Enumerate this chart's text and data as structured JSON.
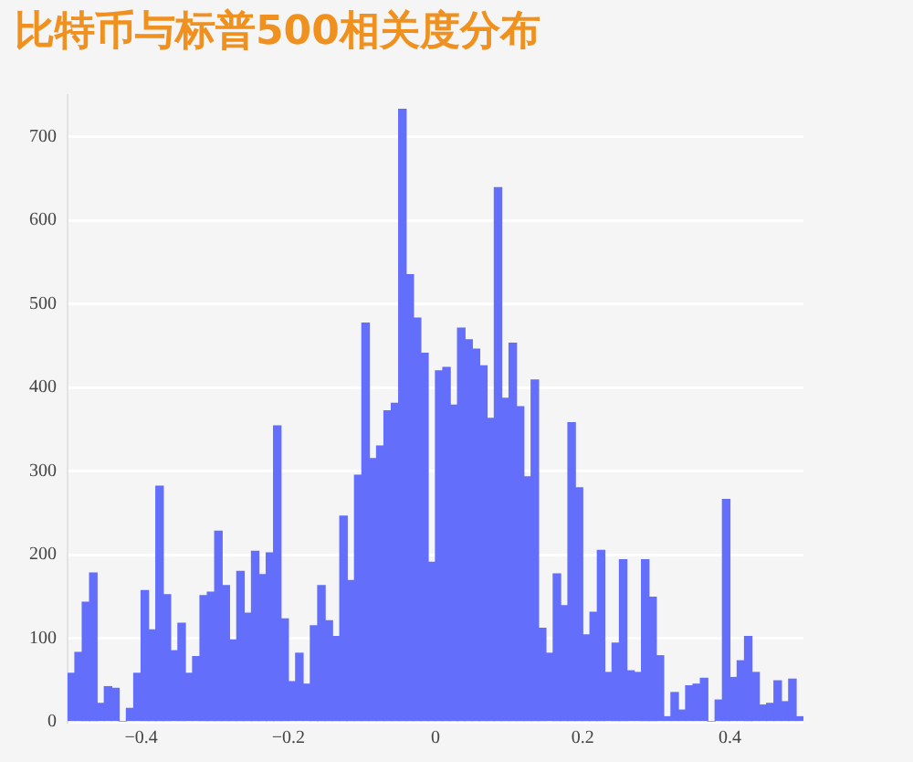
{
  "chart_data": {
    "type": "histogram",
    "title": "比特币与标普500相关度分布",
    "bins": [
      -0.5,
      -0.49,
      -0.48,
      -0.47,
      -0.46,
      -0.45,
      -0.44,
      -0.43,
      -0.42,
      -0.41,
      -0.4,
      -0.39,
      -0.38,
      -0.37,
      -0.36,
      -0.35,
      -0.34,
      -0.33,
      -0.32,
      -0.31,
      -0.3,
      -0.29,
      -0.28,
      -0.27,
      -0.26,
      -0.25,
      -0.24,
      -0.23,
      -0.22,
      -0.21,
      -0.2,
      -0.19,
      -0.18,
      -0.17,
      -0.16,
      -0.15,
      -0.14,
      -0.13,
      -0.12,
      -0.11,
      -0.1,
      -0.09,
      -0.08,
      -0.07,
      -0.06,
      -0.05,
      -0.04,
      -0.03,
      -0.02,
      -0.01,
      0,
      0.01,
      0.02,
      0.03,
      0.04,
      0.05,
      0.06,
      0.07,
      0.08,
      0.09,
      0.1,
      0.11,
      0.12,
      0.13,
      0.14,
      0.15,
      0.16,
      0.17,
      0.18,
      0.19,
      0.2,
      0.21,
      0.22,
      0.23,
      0.24,
      0.25,
      0.26,
      0.27,
      0.28,
      0.29,
      0.3,
      0.31,
      0.32,
      0.33,
      0.34,
      0.35,
      0.36,
      0.37,
      0.38,
      0.39,
      0.4,
      0.41,
      0.42,
      0.43,
      0.44,
      0.45,
      0.46,
      0.47,
      0.48,
      0.49,
      0.5
    ],
    "values": [
      58,
      83,
      143,
      178,
      22,
      42,
      40,
      0,
      16,
      58,
      157,
      110,
      282,
      152,
      85,
      118,
      58,
      78,
      151,
      155,
      228,
      163,
      98,
      180,
      130,
      204,
      176,
      202,
      354,
      123,
      48,
      82,
      45,
      115,
      163,
      121,
      102,
      246,
      169,
      295,
      477,
      315,
      330,
      372,
      381,
      733,
      535,
      483,
      441,
      191,
      420,
      424,
      379,
      471,
      457,
      446,
      426,
      363,
      639,
      387,
      453,
      377,
      293,
      409,
      112,
      82,
      177,
      139,
      358,
      280,
      104,
      131,
      205,
      59,
      94,
      194,
      61,
      59,
      194,
      149,
      79,
      6,
      35,
      14,
      43,
      45,
      52,
      0,
      26,
      266,
      53,
      73,
      102,
      59,
      20,
      22,
      49,
      24,
      51,
      6
    ],
    "color": "#636efa",
    "xlim": [
      -0.5,
      0.5
    ],
    "xticks": [
      {
        "value": -0.4,
        "label": "−0.4"
      },
      {
        "value": -0.2,
        "label": "−0.2"
      },
      0,
      0.2,
      0.4
    ],
    "ylim": [
      0,
      750
    ],
    "yticks": [
      0,
      100,
      200,
      300,
      400,
      500,
      600,
      700
    ],
    "grid": "y"
  }
}
